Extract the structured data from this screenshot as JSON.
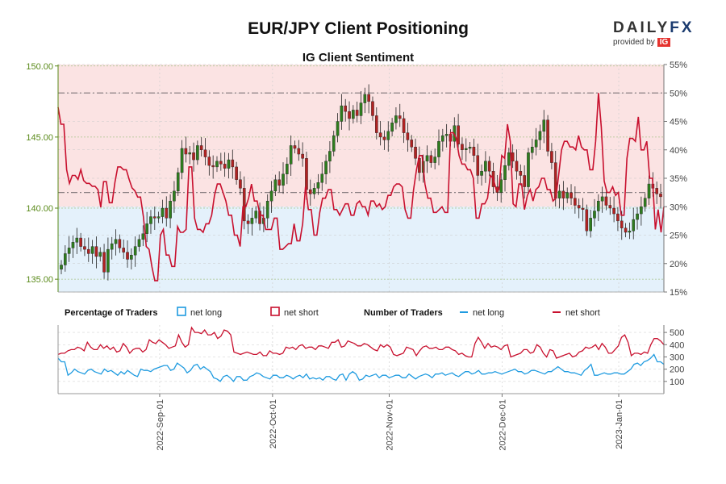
{
  "header": {
    "title": "EUR/JPY Client Positioning",
    "subtitle": "IG Client Sentiment"
  },
  "logo": {
    "brand": "DAILY",
    "brand_accent": "FX",
    "tagline": "provided by",
    "partner": "IG"
  },
  "legend": {
    "pct_title": "Percentage of Traders",
    "pct_long": "net long",
    "pct_short": "net short",
    "num_title": "Number of Traders",
    "num_long": "net long",
    "num_short": "net short"
  },
  "colors": {
    "bull": "#2e7d1e",
    "bear": "#b22222",
    "net_long": "#1f9be0",
    "net_short": "#c8102e",
    "short_zone": "#fbe3e3",
    "long_zone": "#e4f1fb",
    "price_axis": "#5a8a1a"
  },
  "chart_data": [
    {
      "type": "candlestick",
      "title": "EUR/JPY Client Positioning",
      "subtitle": "IG Client Sentiment",
      "y_left_ticks": [
        "150.00",
        "145.00",
        "140.00",
        "135.00"
      ],
      "y_left_range": [
        134.1,
        150.1
      ],
      "y_right_ticks": [
        "55%",
        "50%",
        "45%",
        "40%",
        "35%",
        "30%",
        "25%",
        "20%",
        "15%"
      ],
      "y_right_range": [
        15,
        55
      ],
      "reference_levels_pct": [
        50,
        32.5
      ],
      "x_dates": [
        "2022-08-05",
        "2023-01-13"
      ],
      "x_ticks": [
        "2022-Sep-01",
        "2022-Oct-01",
        "2022-Nov-01",
        "2022-Dec-01",
        "2023-Jan-01"
      ],
      "price_close": [
        136.0,
        136.8,
        137.2,
        137.6,
        137.9,
        137.3,
        137.1,
        136.8,
        137.3,
        136.6,
        136.9,
        135.5,
        137.1,
        137.5,
        137.8,
        137.2,
        136.9,
        136.4,
        136.7,
        137.3,
        137.8,
        138.2,
        138.9,
        139.4,
        139.3,
        139.4,
        140.0,
        139.3,
        140.5,
        141.2,
        142.5,
        144.2,
        143.8,
        143.9,
        143.4,
        144.4,
        144.1,
        143.6,
        143.0,
        142.9,
        143.3,
        143.1,
        142.8,
        143.4,
        142.9,
        142.0,
        141.4,
        139.1,
        138.9,
        139.3,
        139.8,
        138.9,
        139.3,
        140.5,
        141.2,
        142.0,
        141.6,
        142.4,
        143.1,
        144.4,
        144.2,
        143.8,
        143.5,
        141.3,
        141.0,
        141.4,
        141.8,
        142.4,
        143.3,
        144.0,
        145.1,
        146.1,
        147.2,
        146.8,
        146.3,
        146.9,
        146.5,
        147.4,
        148.0,
        147.5,
        146.5,
        145.3,
        145.0,
        144.8,
        145.4,
        146.0,
        146.5,
        146.3,
        145.3,
        144.8,
        144.3,
        143.5,
        142.5,
        143.3,
        143.7,
        143.2,
        143.6,
        144.7,
        145.1,
        145.2,
        144.7,
        145.8,
        144.5,
        144.1,
        144.2,
        144.3,
        143.7,
        142.3,
        142.6,
        143.3,
        142.6,
        141.5,
        141.1,
        142.0,
        143.0,
        143.9,
        143.3,
        142.6,
        142.3,
        141.5,
        143.9,
        144.3,
        144.8,
        145.4,
        146.2,
        144.0,
        143.2,
        140.7,
        141.2,
        140.7,
        141.1,
        140.7,
        140.2,
        140.0,
        139.9,
        138.4,
        139.3,
        139.8,
        140.5,
        140.8,
        140.2,
        140.0,
        139.6,
        139.1,
        138.6,
        138.3,
        138.4,
        139.2,
        139.6,
        140.1,
        140.7,
        141.7,
        141.4,
        141.0,
        140.8
      ],
      "pct_net_long": [
        47.5,
        44.5,
        44.5,
        36.5,
        34.1,
        35.5,
        35.5,
        34.8,
        36.5,
        34.6,
        34.1,
        34.1,
        33.6,
        33.6,
        33.0,
        29.9,
        34.4,
        34.4,
        30.7,
        30.7,
        34.3,
        37.0,
        37.0,
        36.5,
        36.5,
        34.8,
        33.3,
        32.8,
        31.7,
        31.7,
        28.2,
        23.0,
        22.5,
        19.4,
        17.0,
        17.0,
        25.0,
        26.0,
        21.5,
        21.5,
        19.5,
        19.5,
        26.5,
        25.5,
        25.5,
        26.0,
        37.0,
        37.0,
        28.0,
        26.0,
        26.0,
        25.5,
        27.0,
        27.0,
        28.5,
        32.0,
        34.0,
        34.0,
        32.5,
        31.0,
        28.5,
        28.5,
        25.0,
        25.0,
        23.0,
        30.0,
        30.0,
        31.5,
        34.0,
        31.0,
        31.0,
        28.5,
        28.5,
        26.0,
        26.0,
        26.0,
        28.0,
        28.0,
        22.5,
        22.5,
        23.0,
        23.5,
        23.5,
        27.0,
        24.0,
        24.0,
        27.0,
        33.5,
        29.5,
        29.5,
        25.0,
        25.0,
        29.0,
        31.5,
        31.5,
        33.0,
        33.0,
        29.5,
        29.5,
        28.5,
        29.5,
        30.5,
        30.5,
        28.5,
        28.5,
        30.5,
        31.0,
        30.0,
        30.0,
        28.5,
        31.0,
        31.0,
        30.0,
        30.5,
        29.5,
        30.0,
        32.0,
        32.0,
        33.5,
        34.0,
        34.0,
        33.5,
        29.5,
        28.0,
        28.0,
        33.0,
        36.5,
        39.0,
        39.0,
        34.0,
        31.5,
        31.5,
        29.0,
        29.0,
        29.5,
        30.0,
        29.0,
        29.0,
        43.0,
        43.0,
        42.0,
        39.0,
        37.5,
        37.5,
        36.5,
        36.5,
        35.0,
        28.0,
        28.0,
        30.5,
        30.5,
        31.5,
        35.5,
        35.0,
        33.0,
        33.0,
        39.0,
        38.5,
        44.5,
        41.5,
        30.5,
        30.0,
        34.0,
        34.0,
        29.5,
        32.0,
        33.0,
        31.0,
        33.0,
        33.5,
        35.0,
        35.0,
        33.0,
        33.0,
        31.0,
        31.5,
        35.5,
        40.0,
        41.5,
        41.5,
        40.5,
        40.5,
        40.0,
        42.5,
        40.5,
        40.0,
        40.0,
        36.5,
        36.5,
        41.5,
        50.0,
        44.0,
        34.5,
        32.5,
        32.5,
        33.5,
        32.0,
        32.5,
        28.5,
        28.5,
        38.5,
        42.0,
        42.0,
        41.5,
        45.8,
        40.0,
        40.0,
        41.5,
        35.0,
        35.0,
        26.0,
        29.5,
        25.5,
        30.0
      ],
      "y2_range": [
        0,
        560
      ],
      "y2_ticks": [
        "500",
        "400",
        "300",
        "200",
        "100"
      ],
      "num_net_long": [
        290,
        260,
        260,
        150,
        170,
        200,
        180,
        170,
        160,
        190,
        200,
        180,
        170,
        160,
        200,
        180,
        190,
        170,
        150,
        180,
        160,
        190,
        170,
        150,
        140,
        200,
        190,
        190,
        180,
        200,
        210,
        220,
        230,
        230,
        190,
        200,
        250,
        230,
        210,
        170,
        190,
        230,
        240,
        200,
        220,
        200,
        180,
        130,
        120,
        100,
        140,
        150,
        130,
        100,
        140,
        140,
        110,
        110,
        140,
        150,
        170,
        160,
        140,
        130,
        120,
        150,
        150,
        130,
        130,
        150,
        140,
        120,
        140,
        150,
        130,
        160,
        120,
        130,
        120,
        130,
        110,
        140,
        140,
        120,
        110,
        150,
        160,
        110,
        160,
        180,
        160,
        110,
        120,
        150,
        140,
        150,
        160,
        130,
        150,
        150,
        130,
        140,
        150,
        150,
        130,
        130,
        160,
        140,
        120,
        140,
        150,
        160,
        150,
        130,
        160,
        160,
        170,
        150,
        160,
        170,
        150,
        140,
        160,
        180,
        180,
        160,
        170,
        190,
        160,
        160,
        170,
        170,
        180,
        170,
        160,
        170,
        180,
        190,
        200,
        180,
        180,
        160,
        170,
        190,
        190,
        180,
        170,
        160,
        180,
        180,
        200,
        220,
        200,
        180,
        180,
        170,
        170,
        160,
        150,
        190,
        210,
        240,
        150,
        150,
        160,
        170,
        160,
        160,
        170,
        170,
        160,
        160,
        180,
        200,
        240,
        250,
        230,
        260,
        270,
        290,
        320,
        260,
        260,
        240
      ],
      "num_net_short": [
        320,
        330,
        330,
        350,
        360,
        360,
        380,
        370,
        350,
        420,
        380,
        360,
        360,
        400,
        370,
        390,
        360,
        380,
        340,
        350,
        410,
        380,
        330,
        360,
        370,
        370,
        340,
        360,
        440,
        420,
        410,
        440,
        420,
        400,
        370,
        380,
        390,
        480,
        420,
        380,
        400,
        540,
        500,
        500,
        490,
        520,
        480,
        480,
        500,
        450,
        470,
        520,
        510,
        480,
        340,
        330,
        320,
        330,
        340,
        330,
        320,
        320,
        340,
        310,
        310,
        350,
        330,
        330,
        320,
        330,
        380,
        370,
        380,
        360,
        390,
        400,
        370,
        380,
        380,
        360,
        390,
        390,
        380,
        370,
        420,
        420,
        440,
        380,
        390,
        430,
        420,
        410,
        390,
        390,
        410,
        400,
        380,
        360,
        350,
        400,
        380,
        400,
        380,
        320,
        310,
        320,
        330,
        380,
        370,
        360,
        310,
        350,
        380,
        390,
        370,
        370,
        380,
        360,
        360,
        380,
        380,
        360,
        350,
        320,
        330,
        310,
        300,
        300,
        410,
        460,
        420,
        370,
        410,
        380,
        390,
        380,
        360,
        390,
        400,
        300,
        310,
        320,
        330,
        360,
        360,
        330,
        340,
        400,
        380,
        330,
        300,
        360,
        350,
        290,
        300,
        310,
        320,
        330,
        300,
        310,
        340,
        350,
        380,
        370,
        380,
        400,
        360,
        410,
        380,
        330,
        330,
        360,
        390,
        460,
        480,
        420,
        310,
        330,
        330,
        320,
        340,
        330,
        400,
        450,
        450,
        430,
        400
      ]
    }
  ]
}
